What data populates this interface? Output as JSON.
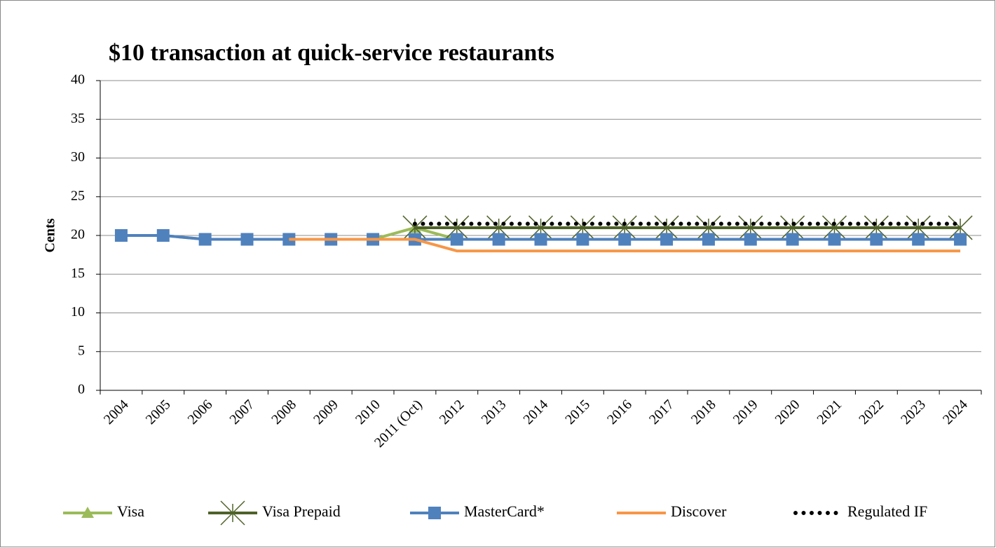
{
  "chart_data": {
    "type": "line",
    "title": "$10 transaction at quick-service restaurants",
    "y_label": "Cents",
    "categories": [
      "2004",
      "2005",
      "2006",
      "2007",
      "2008",
      "2009",
      "2010",
      "2011 (Oct)",
      "2012",
      "2013",
      "2014",
      "2015",
      "2016",
      "2017",
      "2018",
      "2019",
      "2020",
      "2021",
      "2022",
      "2023",
      "2024"
    ],
    "ylim": [
      0,
      40
    ],
    "yticks": [
      0,
      5,
      10,
      15,
      20,
      25,
      30,
      35,
      40
    ],
    "grid": true,
    "legend": "bottom",
    "series": [
      {
        "name": "Visa",
        "color": "#9bbb59",
        "marker": "triangle",
        "dash": "solid",
        "values": [
          20,
          20,
          19.5,
          19.5,
          19.5,
          19.5,
          19.5,
          21,
          19.5,
          19.5,
          19.5,
          19.5,
          19.5,
          19.5,
          19.5,
          19.5,
          19.5,
          19.5,
          19.5,
          19.5,
          19.5
        ]
      },
      {
        "name": "Visa Prepaid",
        "color": "#4f6228",
        "marker": "x",
        "dash": "solid",
        "values": [
          null,
          null,
          null,
          null,
          null,
          null,
          null,
          21,
          21,
          21,
          21,
          21,
          21,
          21,
          21,
          21,
          21,
          21,
          21,
          21,
          21
        ]
      },
      {
        "name": "MasterCard*",
        "color": "#4f81bd",
        "marker": "square",
        "dash": "solid",
        "values": [
          20,
          20,
          19.5,
          19.5,
          19.5,
          19.5,
          19.5,
          19.5,
          19.5,
          19.5,
          19.5,
          19.5,
          19.5,
          19.5,
          19.5,
          19.5,
          19.5,
          19.5,
          19.5,
          19.5,
          19.5
        ]
      },
      {
        "name": "Discover",
        "color": "#f79646",
        "marker": "none",
        "dash": "solid",
        "values": [
          null,
          null,
          null,
          null,
          19.5,
          19.5,
          19.5,
          19.5,
          18,
          18,
          18,
          18,
          18,
          18,
          18,
          18,
          18,
          18,
          18,
          18,
          18
        ]
      },
      {
        "name": "Regulated IF",
        "color": "#000000",
        "marker": "none",
        "dash": "dotted",
        "values": [
          null,
          null,
          null,
          null,
          null,
          null,
          null,
          21.5,
          21.5,
          21.5,
          21.5,
          21.5,
          21.5,
          21.5,
          21.5,
          21.5,
          21.5,
          21.5,
          21.5,
          21.5,
          21.5
        ]
      }
    ]
  }
}
